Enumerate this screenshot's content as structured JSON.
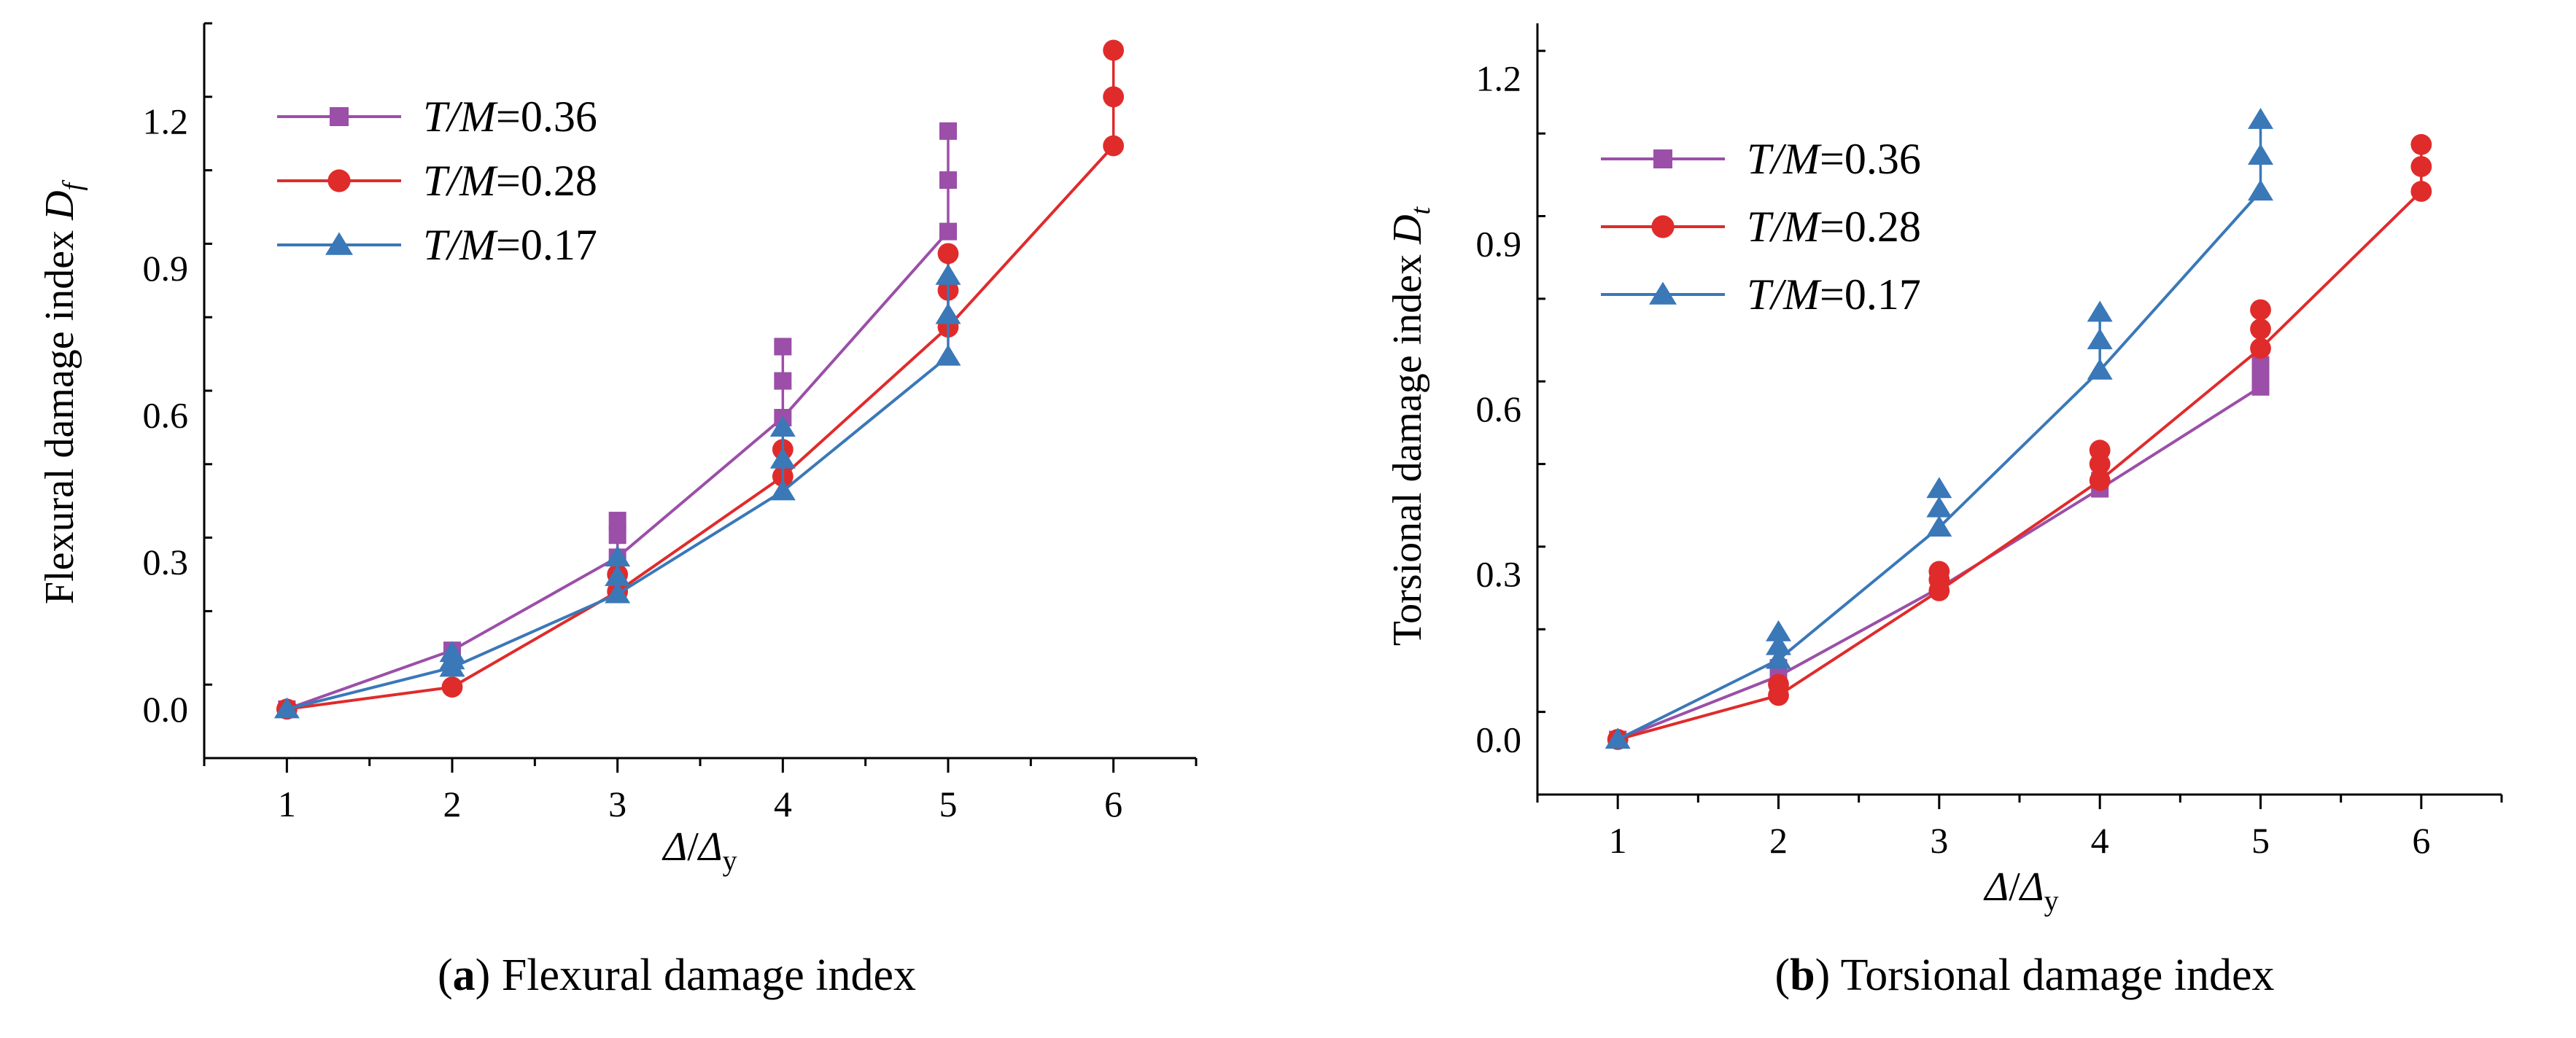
{
  "chart_data": [
    {
      "type": "line",
      "panel": "a",
      "caption_letter": "a",
      "caption_text": "Flexural damage index",
      "ylabel": "Flexural damage index",
      "ylabel_symbol": "D",
      "ylabel_subscript": "f",
      "xlabel_num": "Δ",
      "xlabel_den": "Δ",
      "xlabel_sub": "y",
      "xlabel_slash": "/",
      "xlim": [
        0.5,
        6.5
      ],
      "ylim": [
        -0.1,
        1.4
      ],
      "xticks": [
        1,
        2,
        3,
        4,
        5,
        6
      ],
      "yticks": [
        0.0,
        0.3,
        0.6,
        0.9,
        1.2
      ],
      "ytick_labels": [
        "0.0",
        "0.3",
        "0.6",
        "0.9",
        "1.2"
      ],
      "legend_position": "top-left",
      "series": [
        {
          "name": "T/M=0.36",
          "name_var": "T/M",
          "name_val": "=0.36",
          "color": "#9b4fa8",
          "marker": "square",
          "x": [
            1,
            2,
            3,
            4,
            5
          ],
          "y": [
            0.0,
            0.12,
            0.31,
            0.595,
            0.975
          ],
          "points": [
            [
              1,
              0.0
            ],
            [
              2,
              0.12
            ],
            [
              2,
              0.11
            ],
            [
              3,
              0.31
            ],
            [
              3,
              0.355
            ],
            [
              3,
              0.385
            ],
            [
              4,
              0.595
            ],
            [
              4,
              0.67
            ],
            [
              4,
              0.74
            ],
            [
              5,
              0.975
            ],
            [
              5,
              1.08
            ],
            [
              5,
              1.18
            ]
          ]
        },
        {
          "name": "T/M=0.28",
          "name_var": "T/M",
          "name_val": "=0.28",
          "color": "#e02b2b",
          "marker": "circle",
          "x": [
            1,
            2,
            3,
            4,
            5,
            6
          ],
          "y": [
            0.0,
            0.045,
            0.24,
            0.475,
            0.78,
            1.15
          ],
          "points": [
            [
              1,
              0.0
            ],
            [
              2,
              0.045
            ],
            [
              3,
              0.24
            ],
            [
              3,
              0.275
            ],
            [
              4,
              0.475
            ],
            [
              4,
              0.53
            ],
            [
              5,
              0.78
            ],
            [
              5,
              0.855
            ],
            [
              5,
              0.93
            ],
            [
              6,
              1.15
            ],
            [
              6,
              1.25
            ],
            [
              6,
              1.345
            ]
          ]
        },
        {
          "name": "T/M=0.17",
          "name_var": "T/M",
          "name_val": "=0.17",
          "color": "#3a78b8",
          "marker": "triangle",
          "x": [
            1,
            2,
            3,
            4,
            5
          ],
          "y": [
            0.0,
            0.085,
            0.235,
            0.445,
            0.72
          ],
          "points": [
            [
              1,
              0.0
            ],
            [
              2,
              0.085
            ],
            [
              2,
              0.1
            ],
            [
              2,
              0.115
            ],
            [
              3,
              0.235
            ],
            [
              3,
              0.27
            ],
            [
              3,
              0.31
            ],
            [
              4,
              0.445
            ],
            [
              4,
              0.51
            ],
            [
              4,
              0.575
            ],
            [
              5,
              0.72
            ],
            [
              5,
              0.805
            ],
            [
              5,
              0.885
            ]
          ]
        }
      ]
    },
    {
      "type": "line",
      "panel": "b",
      "caption_letter": "b",
      "caption_text": "Torsional damage index",
      "ylabel": "Torsional damage index",
      "ylabel_symbol": "D",
      "ylabel_subscript": "t",
      "xlabel_num": "Δ",
      "xlabel_den": "Δ",
      "xlabel_sub": "y",
      "xlabel_slash": "/",
      "xlim": [
        0.5,
        6.5
      ],
      "ylim": [
        -0.1,
        1.3
      ],
      "xticks": [
        1,
        2,
        3,
        4,
        5,
        6
      ],
      "yticks": [
        0.0,
        0.3,
        0.6,
        0.9,
        1.2
      ],
      "ytick_labels": [
        "0.0",
        "0.3",
        "0.6",
        "0.9",
        "1.2"
      ],
      "legend_position": "top-left",
      "series": [
        {
          "name": "T/M=0.36",
          "name_var": "T/M",
          "name_val": "=0.36",
          "color": "#9b4fa8",
          "marker": "square",
          "x": [
            1,
            2,
            3,
            4,
            5
          ],
          "y": [
            0.0,
            0.115,
            0.275,
            0.455,
            0.64
          ],
          "points": [
            [
              1,
              0.0
            ],
            [
              2,
              0.115
            ],
            [
              2,
              0.13
            ],
            [
              3,
              0.275
            ],
            [
              3,
              0.29
            ],
            [
              4,
              0.455
            ],
            [
              4,
              0.47
            ],
            [
              5,
              0.64
            ],
            [
              5,
              0.66
            ],
            [
              5,
              0.68
            ]
          ]
        },
        {
          "name": "T/M=0.28",
          "name_var": "T/M",
          "name_val": "=0.28",
          "color": "#e02b2b",
          "marker": "circle",
          "x": [
            1,
            2,
            3,
            4,
            5,
            6
          ],
          "y": [
            0.0,
            0.08,
            0.27,
            0.47,
            0.71,
            0.995
          ],
          "points": [
            [
              1,
              0.0
            ],
            [
              2,
              0.08
            ],
            [
              2,
              0.1
            ],
            [
              3,
              0.27
            ],
            [
              3,
              0.29
            ],
            [
              3,
              0.305
            ],
            [
              4,
              0.47
            ],
            [
              4,
              0.5
            ],
            [
              4,
              0.525
            ],
            [
              5,
              0.71
            ],
            [
              5,
              0.745
            ],
            [
              5,
              0.78
            ],
            [
              6,
              0.995
            ],
            [
              6,
              1.04
            ],
            [
              6,
              1.08
            ]
          ]
        },
        {
          "name": "T/M=0.17",
          "name_var": "T/M",
          "name_val": "=0.17",
          "color": "#3a78b8",
          "marker": "triangle",
          "x": [
            1,
            2,
            3,
            4,
            5
          ],
          "y": [
            0.0,
            0.145,
            0.385,
            0.67,
            0.995
          ],
          "points": [
            [
              1,
              0.0
            ],
            [
              2,
              0.145
            ],
            [
              2,
              0.17
            ],
            [
              2,
              0.195
            ],
            [
              3,
              0.385
            ],
            [
              3,
              0.42
            ],
            [
              3,
              0.455
            ],
            [
              4,
              0.67
            ],
            [
              4,
              0.725
            ],
            [
              4,
              0.775
            ],
            [
              5,
              0.995
            ],
            [
              5,
              1.06
            ],
            [
              5,
              1.125
            ]
          ]
        }
      ]
    }
  ]
}
